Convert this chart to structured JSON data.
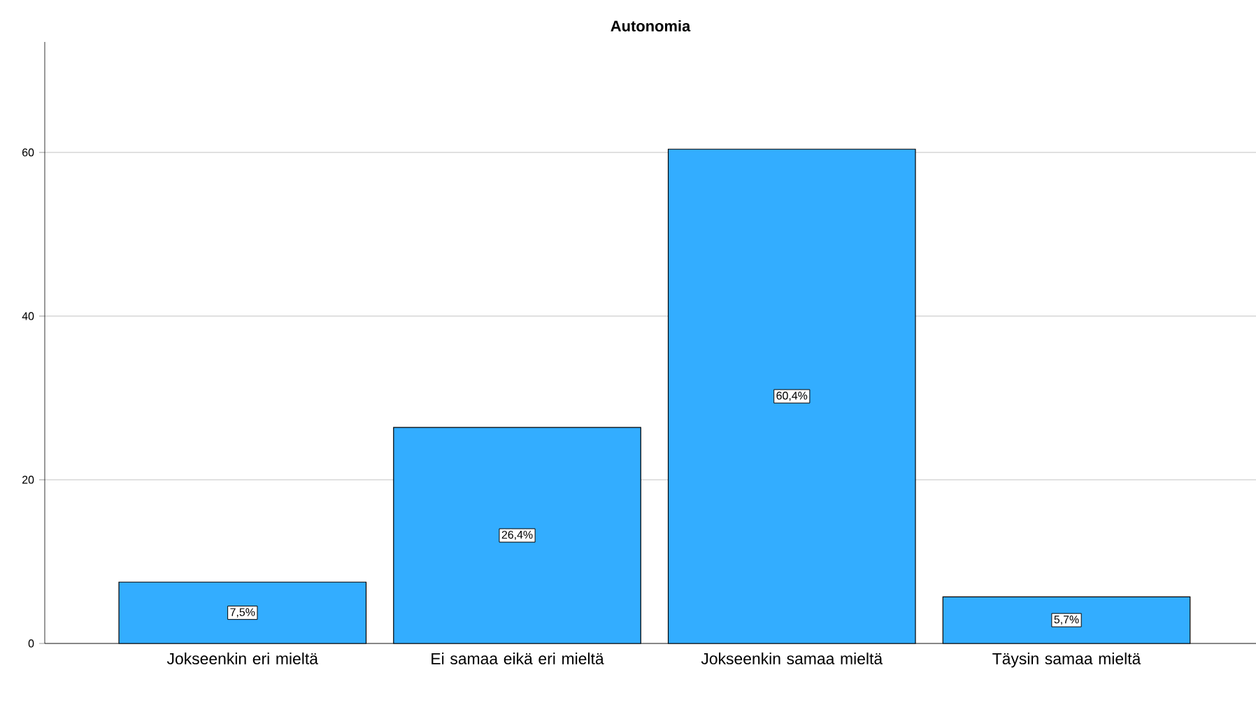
{
  "chart_data": {
    "type": "bar",
    "title": "Autonomia",
    "categories": [
      "Jokseenkin eri mieltä",
      "Ei samaa eikä eri mieltä",
      "Jokseenkin samaa mieltä",
      "Täysin samaa mieltä"
    ],
    "values": [
      7.5,
      26.4,
      60.4,
      5.7
    ],
    "value_labels": [
      "7,5%",
      "26,4%",
      "60,4%",
      "5,7%"
    ],
    "color": "#33adff",
    "ylim": [
      0,
      73.5
    ],
    "yticks": [
      0,
      20,
      40,
      60
    ],
    "grid": "y"
  }
}
